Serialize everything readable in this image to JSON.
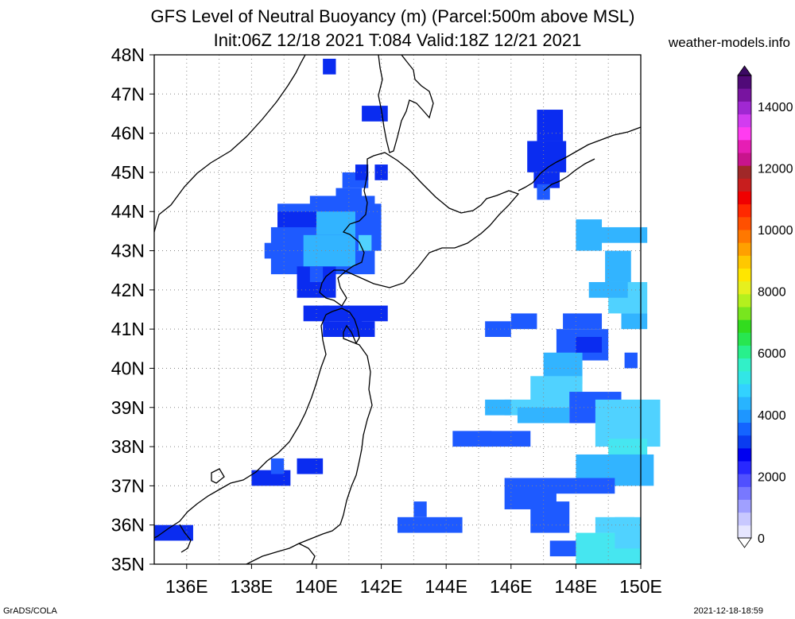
{
  "title": {
    "line1": "GFS Level of Neutral Buoyancy (m) (Parcel:500m above MSL)",
    "line2": "Init:06Z 12/18 2021 T:084 Valid:18Z 12/21 2021"
  },
  "site": "weather-models.info",
  "footer": {
    "left": "GrADS/COLA",
    "right": "2021-12-18-18:59"
  },
  "map": {
    "lon_range": [
      135,
      150
    ],
    "lat_range": [
      35,
      48
    ],
    "lat_labels": [
      "35N",
      "36N",
      "37N",
      "38N",
      "39N",
      "40N",
      "41N",
      "42N",
      "43N",
      "44N",
      "45N",
      "46N",
      "47N",
      "48N"
    ],
    "lon_labels": [
      "136E",
      "138E",
      "140E",
      "142E",
      "144E",
      "146E",
      "148E",
      "150E"
    ],
    "grid": "dotted"
  },
  "colorbar": {
    "ticks": [
      "0",
      "2000",
      "4000",
      "6000",
      "8000",
      "10000",
      "12000",
      "14000"
    ],
    "colors": [
      "#e6e6ff",
      "#c8c8ff",
      "#a0a0ff",
      "#7878ff",
      "#5050ff",
      "#2828ff",
      "#0000f0",
      "#0a3cf0",
      "#1464ff",
      "#1e96ff",
      "#28b4ff",
      "#32d2ff",
      "#32e6e6",
      "#32f0c8",
      "#28f08c",
      "#28e650",
      "#32dc1e",
      "#78e61e",
      "#b4f01e",
      "#e6f01e",
      "#ffe600",
      "#ffc800",
      "#ffa000",
      "#ff7800",
      "#ff5000",
      "#ff2800",
      "#f00000",
      "#c81e1e",
      "#a02828",
      "#c8148c",
      "#e61eb4",
      "#ff3cf0",
      "#d23cf0",
      "#a028d2",
      "#7814a0",
      "#500a78"
    ]
  },
  "regions_legend": "LNB fields over Sea of Japan and Pacific east of Japan"
}
